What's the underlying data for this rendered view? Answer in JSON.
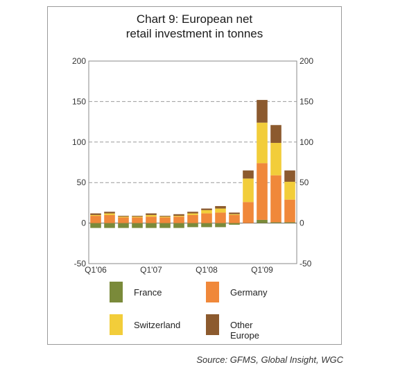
{
  "chart_data": {
    "type": "bar",
    "stacked": true,
    "title_line1": "Chart 9: European net",
    "title_line2": "retail investment in tonnes",
    "ylim": [
      -50,
      200
    ],
    "yticks": [
      -50,
      0,
      50,
      100,
      150,
      200
    ],
    "secondary_y_axis": true,
    "grid": "dashed horizontal",
    "x_tick_labels": [
      "Q1'06",
      "Q1'07",
      "Q1'08",
      "Q1'09"
    ],
    "x_tick_label_positions": [
      0,
      4,
      8,
      12
    ],
    "categories": [
      "Q1'06",
      "Q2'06",
      "Q3'06",
      "Q4'06",
      "Q1'07",
      "Q2'07",
      "Q3'07",
      "Q4'07",
      "Q1'08",
      "Q2'08",
      "Q3'08",
      "Q4'08",
      "Q1'09",
      "Q2'09",
      "Q3'09"
    ],
    "series": [
      {
        "name": "France",
        "color": "#7a8a3a",
        "values": [
          -6,
          -6,
          -6,
          -6,
          -6,
          -6,
          -6,
          -5,
          -5,
          -5,
          -2,
          0,
          4,
          1,
          1
        ]
      },
      {
        "name": "Germany",
        "color": "#f0883a",
        "values": [
          9,
          10,
          7,
          7,
          8,
          7,
          8,
          10,
          12,
          13,
          10,
          26,
          70,
          58,
          28
        ]
      },
      {
        "name": "Switzerland",
        "color": "#f2cd3a",
        "values": [
          1,
          2,
          1,
          1,
          2,
          1,
          1,
          2,
          4,
          5,
          1,
          29,
          50,
          40,
          22
        ]
      },
      {
        "name": "Other Europe",
        "color": "#8c5a2e",
        "values": [
          2,
          2,
          1,
          1,
          2,
          1,
          2,
          2,
          2,
          3,
          2,
          10,
          28,
          22,
          14
        ]
      }
    ],
    "legend_position": "bottom"
  },
  "source": "Source:  GFMS, Global Insight, WGC"
}
